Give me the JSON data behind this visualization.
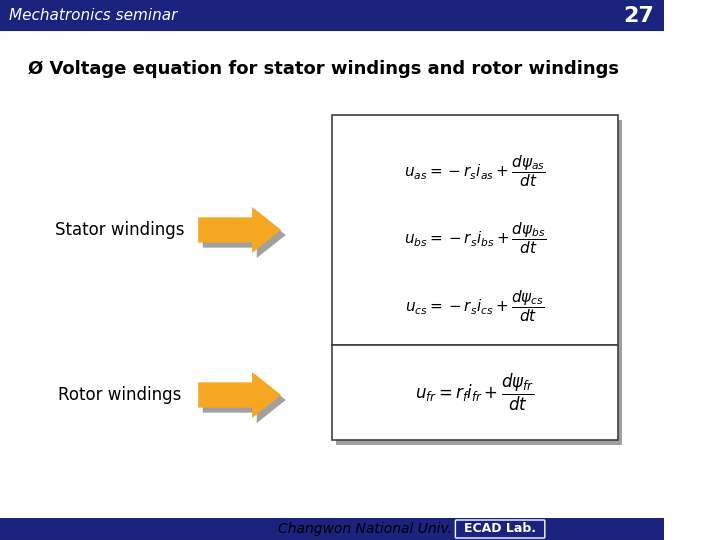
{
  "title_text": "Mechatronics seminar",
  "slide_number": "27",
  "bullet_text": "Voltage equation for stator windings and rotor windings",
  "stator_label": "Stator windings",
  "rotor_label": "Rotor windings",
  "stator_eq1": "$u_{as} = -r_s i_{as} + \\dfrac{d\\psi_{as}}{dt}$",
  "stator_eq2": "$u_{bs} = -r_s i_{bs} + \\dfrac{d\\psi_{bs}}{dt}$",
  "stator_eq3": "$u_{cs} = -r_s i_{cs} + \\dfrac{d\\psi_{cs}}{dt}$",
  "rotor_eq": "$u_{fr} = r_f i_{fr} + \\dfrac{d\\psi_{fr}}{dt}$",
  "footer_text": "Changwon National Univ.",
  "footer_badge": "ECAD Lab.",
  "bg_color": "#ffffff",
  "header_bar_color": "#1a237e",
  "arrow_color": "#f5a623",
  "arrow_shadow": "#a0a0a0",
  "box_border_color": "#404040",
  "box_shadow_color": "#a0a0a0",
  "title_color": "#1a237e",
  "slide_num_color": "#1a237e",
  "bullet_color": "#000000",
  "label_color": "#000000",
  "eq_color": "#000000",
  "footer_color": "#000000",
  "badge_bg": "#1a237e",
  "badge_text_color": "#ffffff"
}
